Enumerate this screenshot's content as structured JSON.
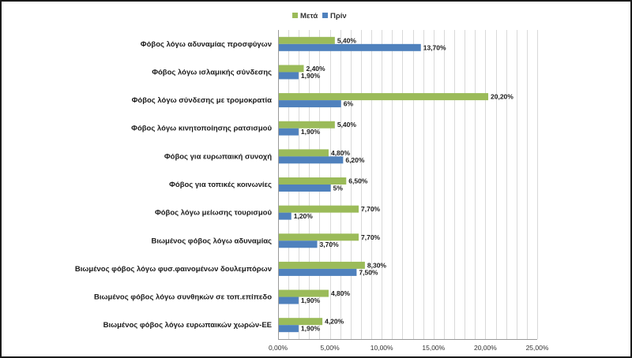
{
  "chart_data": {
    "type": "bar",
    "orientation": "horizontal",
    "categories": [
      "Φόβος λόγω αδυναμίας προσφύγων",
      "Φόβος λόγω ισλαμικής σύνδεσης",
      "Φόβος λόγω σύνδεσης με τρομοκρατία",
      "Φόβος λόγω κινητοποίησης ρατσισμού",
      "Φόβος για ευρωπαική συνοχή",
      "Φόβος για τοπικές κοινωνίες",
      "Φόβος λόγω μείωσης τουρισμού",
      "Βιωμένος φόβος λόγω αδυναμίας",
      "Βιωμένος φόβος λόγω φυσ.φαινομένων δουλεμπόρων",
      "Βιωμένος φόβος λόγω συνθηκών σε τοπ.επίπεδο",
      "Βιωμένος φόβος λόγω ευρωπαικών χωρών-ΕΕ"
    ],
    "series": [
      {
        "name": "Μετά",
        "color": "#9bbb59",
        "values": [
          5.4,
          2.4,
          20.2,
          5.4,
          4.8,
          6.5,
          7.7,
          7.7,
          8.3,
          4.8,
          4.2
        ],
        "labels": [
          "5,40%",
          "2,40%",
          "20,20%",
          "5,40%",
          "4,80%",
          "6,50%",
          "7,70%",
          "7,70%",
          "8,30%",
          "4,80%",
          "4,20%"
        ]
      },
      {
        "name": "Πρίν",
        "color": "#4f81bd",
        "values": [
          13.7,
          1.9,
          6,
          1.9,
          6.2,
          5,
          1.2,
          3.7,
          7.5,
          1.9,
          1.9
        ],
        "labels": [
          "13,70%",
          "1,90%",
          "6%",
          "1,90%",
          "6,20%",
          "5%",
          "1,20%",
          "3,70%",
          "7,50%",
          "1,90%",
          "1,90%"
        ]
      }
    ],
    "x_ticks": [
      0,
      5,
      10,
      15,
      20,
      25
    ],
    "x_tick_labels": [
      "0,00%",
      "5,00%",
      "10,00%",
      "15,00%",
      "20,00%",
      "25,00%"
    ],
    "xlim": [
      0,
      25
    ],
    "minor_grid_step": 1,
    "legend": {
      "position": "top",
      "entries": [
        "Μετά",
        "Πρίν"
      ]
    },
    "title": "",
    "xlabel": "",
    "ylabel": ""
  }
}
